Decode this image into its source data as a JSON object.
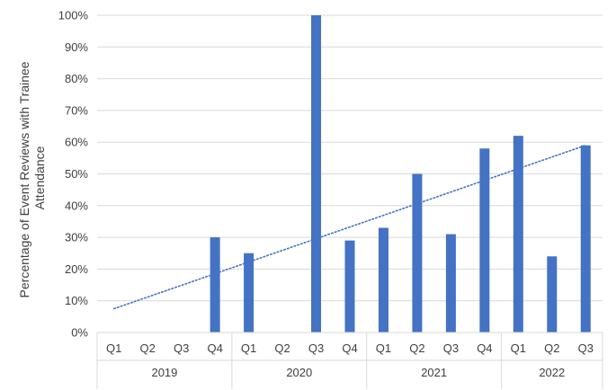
{
  "chart_data": {
    "type": "bar",
    "xlabel": "",
    "ylabel": "Percentage of Event Reviews with Trainee Attendance",
    "ylabel_lines": [
      "Percentage of Event Reviews with Trainee",
      "Attendance"
    ],
    "ylim": [
      0,
      100
    ],
    "y_ticks": [
      "0%",
      "10%",
      "20%",
      "30%",
      "40%",
      "50%",
      "60%",
      "70%",
      "80%",
      "90%",
      "100%"
    ],
    "grid": true,
    "legend": "none",
    "groups": [
      {
        "year": "2019",
        "quarters": [
          "Q1",
          "Q2",
          "Q3",
          "Q4"
        ]
      },
      {
        "year": "2020",
        "quarters": [
          "Q1",
          "Q2",
          "Q3",
          "Q4"
        ]
      },
      {
        "year": "2021",
        "quarters": [
          "Q1",
          "Q2",
          "Q3",
          "Q4"
        ]
      },
      {
        "year": "2022",
        "quarters": [
          "Q1",
          "Q2",
          "Q3"
        ]
      }
    ],
    "values": [
      0,
      0,
      0,
      30,
      25,
      0,
      100,
      29,
      33,
      50,
      31,
      58,
      62,
      24,
      59
    ],
    "trendline": {
      "style": "dotted",
      "start": 7.5,
      "end": 59
    },
    "colors": {
      "bar": "#4472c4",
      "trendline": "#4472c4",
      "grid": "#d9d9d9",
      "text": "#3f3f3f"
    }
  }
}
